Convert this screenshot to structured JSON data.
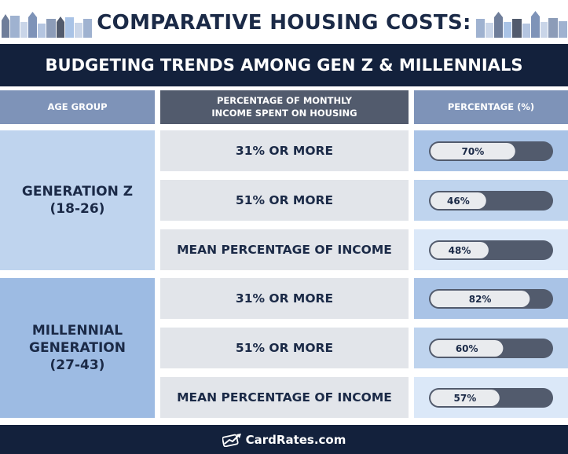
{
  "header": {
    "title": "COMPARATIVE HOUSING COSTS:",
    "subtitle": "BUDGETING TRENDS AMONG GEN Z & MILLENNIALS"
  },
  "columns": {
    "age_group": "AGE GROUP",
    "pct_income_line1": "PERCENTAGE OF MONTHLY",
    "pct_income_line2": "INCOME SPENT ON HOUSING",
    "percentage": "PERCENTAGE (%)"
  },
  "chart_data": {
    "type": "table",
    "groups": [
      {
        "name_line1": "GENERATION Z",
        "name_line2": "(18-26)",
        "rows": [
          {
            "label": "31% OR MORE",
            "value": 70,
            "display": "70%"
          },
          {
            "label": "51% OR MORE",
            "value": 46,
            "display": "46%"
          },
          {
            "label": "MEAN PERCENTAGE OF INCOME",
            "value": 48,
            "display": "48%"
          }
        ]
      },
      {
        "name_line1": "MILLENNIAL",
        "name_line2": "GENERATION",
        "name_line3": "(27-43)",
        "rows": [
          {
            "label": "31% OR MORE",
            "value": 82,
            "display": "82%"
          },
          {
            "label": "51% OR MORE",
            "value": 60,
            "display": "60%"
          },
          {
            "label": "MEAN PERCENTAGE OF INCOME",
            "value": 57,
            "display": "57%"
          }
        ]
      }
    ]
  },
  "colors": {
    "navy": "#13213c",
    "title_text": "#1b2a47",
    "slate": "#525b6d",
    "column_blue": "#7e93b8",
    "gen_z_cell": "#bfd4ee",
    "millennial_cell": "#9dbbe3",
    "label_cell": "#e2e5ea",
    "bar_fill": "#e9ebee",
    "bar_remainder": "#525b6d",
    "pct_cell_shades": [
      "#a9c3e6",
      "#bfd4ee",
      "#dbe8f8"
    ]
  },
  "footer": {
    "brand": "CardRates.com",
    "icon": "chart-card-icon"
  }
}
